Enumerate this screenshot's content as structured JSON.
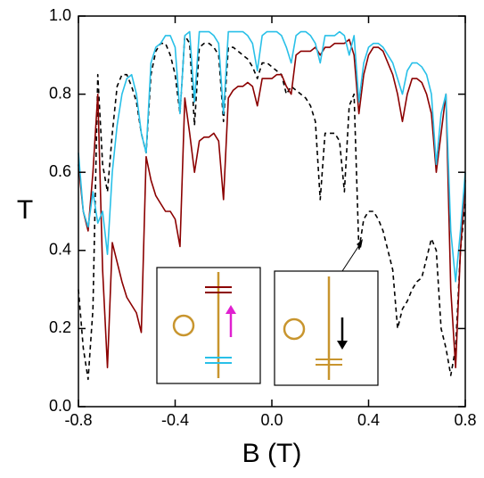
{
  "chart_data": {
    "type": "line",
    "x_label": "B (T)",
    "y_label": "T",
    "x": [
      -0.8,
      -0.78,
      -0.76,
      -0.74,
      -0.72,
      -0.7,
      -0.68,
      -0.66,
      -0.64,
      -0.62,
      -0.6,
      -0.58,
      -0.56,
      -0.54,
      -0.52,
      -0.5,
      -0.48,
      -0.46,
      -0.44,
      -0.42,
      -0.4,
      -0.38,
      -0.36,
      -0.34,
      -0.32,
      -0.3,
      -0.28,
      -0.26,
      -0.24,
      -0.22,
      -0.2,
      -0.18,
      -0.16,
      -0.14,
      -0.12,
      -0.1,
      -0.08,
      -0.06,
      -0.04,
      -0.02,
      0,
      0.02,
      0.04,
      0.06,
      0.08,
      0.1,
      0.12,
      0.14,
      0.16,
      0.18,
      0.2,
      0.22,
      0.24,
      0.26,
      0.28,
      0.3,
      0.32,
      0.34,
      0.36,
      0.38,
      0.4,
      0.42,
      0.44,
      0.46,
      0.48,
      0.5,
      0.52,
      0.54,
      0.56,
      0.58,
      0.6,
      0.62,
      0.64,
      0.66,
      0.68,
      0.7,
      0.72,
      0.74,
      0.76,
      0.78,
      0.8
    ],
    "series": [
      {
        "color": "#29c0e8",
        "style": "solid",
        "values": [
          0.65,
          0.5,
          0.46,
          0.55,
          0.47,
          0.5,
          0.39,
          0.6,
          0.72,
          0.8,
          0.84,
          0.85,
          0.8,
          0.7,
          0.65,
          0.88,
          0.92,
          0.93,
          0.95,
          0.95,
          0.92,
          0.75,
          0.95,
          0.96,
          0.78,
          0.96,
          0.96,
          0.96,
          0.95,
          0.93,
          0.75,
          0.96,
          0.96,
          0.96,
          0.96,
          0.95,
          0.93,
          0.86,
          0.95,
          0.96,
          0.96,
          0.96,
          0.95,
          0.92,
          0.88,
          0.95,
          0.96,
          0.96,
          0.95,
          0.93,
          0.88,
          0.95,
          0.95,
          0.95,
          0.96,
          0.95,
          0.9,
          0.95,
          0.78,
          0.88,
          0.92,
          0.93,
          0.93,
          0.92,
          0.9,
          0.88,
          0.84,
          0.8,
          0.86,
          0.88,
          0.88,
          0.87,
          0.85,
          0.8,
          0.62,
          0.75,
          0.8,
          0.45,
          0.32,
          0.45,
          0.6
        ]
      },
      {
        "color": "#8b0000",
        "style": "solid",
        "values": [
          0.62,
          0.5,
          0.45,
          0.6,
          0.8,
          0.35,
          0.1,
          0.42,
          0.37,
          0.32,
          0.28,
          0.26,
          0.24,
          0.19,
          0.64,
          0.58,
          0.54,
          0.52,
          0.5,
          0.5,
          0.48,
          0.41,
          0.79,
          0.7,
          0.6,
          0.68,
          0.69,
          0.69,
          0.7,
          0.68,
          0.53,
          0.79,
          0.81,
          0.82,
          0.82,
          0.83,
          0.82,
          0.77,
          0.84,
          0.84,
          0.84,
          0.85,
          0.85,
          0.82,
          0.8,
          0.9,
          0.91,
          0.91,
          0.91,
          0.92,
          0.9,
          0.92,
          0.92,
          0.93,
          0.93,
          0.93,
          0.94,
          0.9,
          0.75,
          0.85,
          0.9,
          0.92,
          0.92,
          0.91,
          0.88,
          0.85,
          0.8,
          0.73,
          0.8,
          0.84,
          0.84,
          0.83,
          0.8,
          0.75,
          0.6,
          0.7,
          0.8,
          0.3,
          0.1,
          0.4,
          0.58
        ]
      },
      {
        "color": "#000000",
        "style": "dashed",
        "values": [
          0.3,
          0.15,
          0.07,
          0.25,
          0.85,
          0.62,
          0.55,
          0.7,
          0.82,
          0.85,
          0.85,
          0.82,
          0.78,
          0.7,
          0.65,
          0.85,
          0.91,
          0.93,
          0.93,
          0.9,
          0.85,
          0.75,
          0.95,
          0.93,
          0.72,
          0.92,
          0.93,
          0.93,
          0.92,
          0.9,
          0.73,
          0.92,
          0.92,
          0.91,
          0.9,
          0.89,
          0.87,
          0.84,
          0.88,
          0.88,
          0.87,
          0.86,
          0.85,
          0.8,
          0.82,
          0.81,
          0.8,
          0.79,
          0.77,
          0.73,
          0.53,
          0.7,
          0.7,
          0.7,
          0.68,
          0.55,
          0.77,
          0.8,
          0.4,
          0.48,
          0.5,
          0.5,
          0.48,
          0.45,
          0.4,
          0.35,
          0.2,
          0.25,
          0.27,
          0.3,
          0.32,
          0.33,
          0.38,
          0.43,
          0.4,
          0.2,
          0.15,
          0.08,
          0.15,
          0.4,
          0.52
        ]
      }
    ],
    "xlim": [
      -0.8,
      0.8
    ],
    "ylim": [
      0,
      1
    ],
    "xticks": [
      -0.8,
      -0.4,
      {
        "value": 0,
        "label": "0.0"
      },
      0.4,
      0.8
    ],
    "yticks": [
      {
        "value": 0,
        "label": "0.0"
      },
      0.2,
      0.4,
      0.6,
      0.8,
      {
        "value": 1,
        "label": "1.0"
      }
    ]
  }
}
